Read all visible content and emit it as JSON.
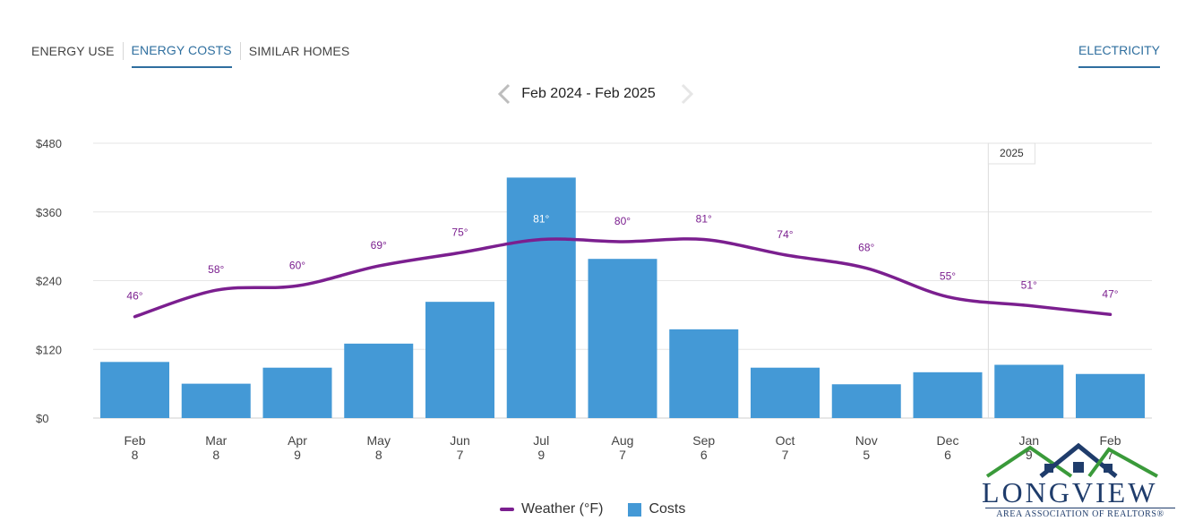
{
  "tabs": [
    {
      "label": "ENERGY USE",
      "active": false
    },
    {
      "label": "ENERGY COSTS",
      "active": true
    },
    {
      "label": "SIMILAR HOMES",
      "active": false
    }
  ],
  "fuel_tab": {
    "label": "ELECTRICITY",
    "active": true
  },
  "period": {
    "label": "Feb 2024 - Feb 2025",
    "prev_icon": "chevron-left-icon",
    "next_icon": "chevron-right-icon"
  },
  "legend": {
    "weather_label": "Weather (°F)",
    "costs_label": "Costs"
  },
  "logo": {
    "name": "LONGVIEW",
    "subtitle": "AREA ASSOCIATION OF REALTORS®"
  },
  "colors": {
    "bar": "#4499d6",
    "line": "#7b1f8f",
    "accent": "#2f6f9f"
  },
  "chart_data": {
    "type": "bar",
    "categories": [
      "Feb",
      "Mar",
      "Apr",
      "May",
      "Jun",
      "Jul",
      "Aug",
      "Sep",
      "Oct",
      "Nov",
      "Dec",
      "Jan",
      "Feb"
    ],
    "category_sublabels": [
      "8",
      "8",
      "9",
      "8",
      "7",
      "9",
      "7",
      "6",
      "7",
      "5",
      "6",
      "9",
      "7"
    ],
    "series": [
      {
        "name": "Costs",
        "type": "bar",
        "values": [
          98,
          60,
          88,
          130,
          203,
          420,
          278,
          155,
          88,
          59,
          80,
          93,
          77
        ]
      },
      {
        "name": "Weather (°F)",
        "type": "line",
        "values": [
          46,
          58,
          60,
          69,
          75,
          81,
          80,
          81,
          74,
          68,
          55,
          51,
          47
        ],
        "point_labels": [
          "46°",
          "58°",
          "60°",
          "69°",
          "75°",
          "81°",
          "80°",
          "81°",
          "74°",
          "68°",
          "55°",
          "51°",
          "47°"
        ]
      }
    ],
    "yticks": [
      "$480",
      "$360",
      "$240",
      "$120",
      "$0"
    ],
    "ylim": [
      0,
      480
    ],
    "year_marker": {
      "label": "2025",
      "before_category_index": 11
    },
    "grid": true,
    "legend_position": "bottom-center"
  }
}
